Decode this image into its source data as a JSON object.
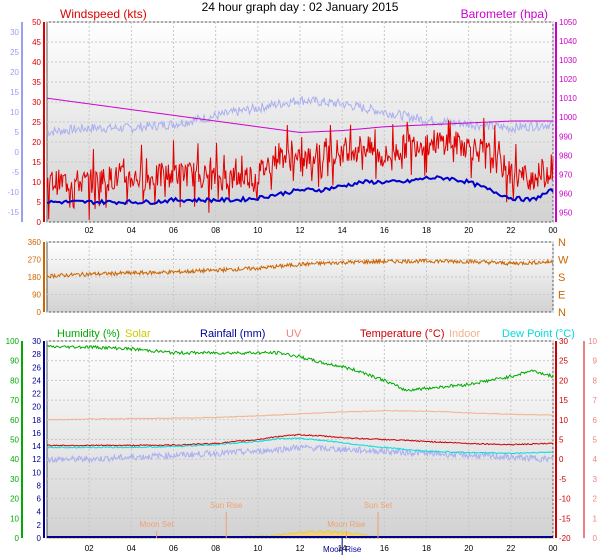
{
  "title": "24 hour graph day : 02 January 2015",
  "colors": {
    "windspeed": "#e00000",
    "avgwind": "#0000cc",
    "barometer": "#cc00cc",
    "temperature": "#cc0000",
    "indoor": "#f5b08a",
    "dewpoint": "#00dddd",
    "humidity": "#00aa00",
    "solar": "#cccc00",
    "rainfall": "#000099",
    "uv": "#f08080",
    "winddir": "#cc6600",
    "extra": "#aab0f0",
    "moon": "#f0a070"
  },
  "chart_data": [
    {
      "type": "line",
      "panel": "wind",
      "labels": {
        "left": "Windspeed (kts)",
        "right": "Barometer (hpa)"
      },
      "x_ticks": [
        "02",
        "04",
        "06",
        "08",
        "10",
        "12",
        "14",
        "16",
        "18",
        "20",
        "22",
        "00"
      ],
      "ylim_left": [
        0,
        50
      ],
      "left_ticks": [
        "0",
        "5",
        "10",
        "15",
        "20",
        "25",
        "30",
        "35",
        "40",
        "45",
        "50"
      ],
      "ylim_right": [
        945,
        1050
      ],
      "right_ticks": [
        "950",
        "960",
        "970",
        "980",
        "990",
        "1000",
        "1010",
        "1020",
        "1030",
        "1040",
        "1050"
      ],
      "far_left_ticks": [
        "-15",
        "-10",
        "-5",
        "0",
        "5",
        "10",
        "15",
        "20",
        "25",
        "30"
      ],
      "series": [
        {
          "key": "windspeed",
          "x": [
            0,
            1,
            2,
            3,
            4,
            5,
            6,
            7,
            8,
            9,
            10,
            11,
            12,
            13,
            14,
            15,
            16,
            17,
            18,
            19,
            20,
            21,
            22,
            23,
            24
          ],
          "values": [
            10,
            10,
            10,
            11,
            11,
            11,
            12,
            12,
            11,
            11,
            12,
            17,
            15,
            17,
            18,
            19,
            16,
            19,
            20,
            20,
            19,
            17,
            12,
            11,
            13
          ]
        },
        {
          "key": "avgwind",
          "x": [
            0,
            1,
            2,
            3,
            4,
            5,
            6,
            7,
            8,
            9,
            10,
            11,
            12,
            13,
            14,
            15,
            16,
            17,
            18,
            19,
            20,
            21,
            22,
            23,
            24
          ],
          "values": [
            5,
            5,
            5,
            5,
            5,
            5,
            5.5,
            5.5,
            5.5,
            5.5,
            6,
            7,
            8,
            8,
            9,
            10,
            10,
            10,
            11,
            11,
            10,
            8,
            6,
            5.5,
            8
          ]
        },
        {
          "key": "barometer",
          "x": [
            0,
            2,
            4,
            6,
            8,
            10,
            12,
            14,
            16,
            18,
            20,
            22,
            24
          ],
          "values": [
            1010,
            1007,
            1004,
            1001,
            998,
            995,
            992,
            993,
            995,
            996,
            997,
            998,
            998
          ]
        },
        {
          "key": "extra",
          "x": [
            0,
            2,
            4,
            6,
            8,
            10,
            12,
            14,
            16,
            18,
            20,
            22,
            24
          ],
          "values": [
            5,
            6,
            6,
            7,
            9,
            11,
            13,
            12,
            10,
            8,
            7,
            6,
            7
          ]
        }
      ]
    },
    {
      "type": "line",
      "panel": "direction",
      "left_ticks": [
        "0",
        "90",
        "180",
        "270",
        "360"
      ],
      "ylim_left": [
        0,
        360
      ],
      "right_ticks": [
        "N",
        "W",
        "S",
        "E",
        "N"
      ],
      "x_ticks": [],
      "series": [
        {
          "key": "winddir",
          "x": [
            0,
            2,
            4,
            6,
            8,
            10,
            12,
            14,
            16,
            18,
            20,
            22,
            24
          ],
          "values": [
            185,
            195,
            200,
            205,
            215,
            225,
            245,
            255,
            260,
            262,
            260,
            250,
            258
          ]
        }
      ]
    },
    {
      "type": "line",
      "panel": "temps",
      "labels": {
        "humidity": "Humidity (%)",
        "solar": "Solar",
        "rainfall": "Rainfall (mm)",
        "uv": "UV",
        "temperature": "Temperature (°C)",
        "indoor": "Indoor",
        "dewpoint": "Dew Point (°C)"
      },
      "x_ticks": [
        "02",
        "04",
        "06",
        "08",
        "10",
        "12",
        "14",
        "16",
        "18",
        "20",
        "22",
        "00"
      ],
      "humidity_ticks": [
        "0",
        "10",
        "20",
        "30",
        "40",
        "50",
        "60",
        "70",
        "80",
        "90",
        "100"
      ],
      "rain_ticks": [
        "0",
        "2",
        "4",
        "6",
        "8",
        "10",
        "12",
        "14",
        "16",
        "18",
        "20",
        "22",
        "24",
        "26",
        "28",
        "30"
      ],
      "temp_ticks": [
        "-20",
        "-15",
        "-10",
        "-5",
        "0",
        "5",
        "10",
        "15",
        "20",
        "25",
        "30"
      ],
      "uv_ticks": [
        "0",
        "1",
        "2",
        "3",
        "4",
        "5",
        "6",
        "7",
        "8",
        "9",
        "10"
      ],
      "ylim_temp": [
        -20,
        30
      ],
      "ylim_humidity": [
        0,
        100
      ],
      "annotations": [
        "Moon Set",
        "Sun Rise",
        "Moon Rise",
        "Sun Set",
        "Moon Rise"
      ],
      "series": [
        {
          "key": "humidity",
          "x": [
            0,
            2,
            4,
            6,
            8,
            9,
            10,
            11,
            12,
            13,
            14,
            15,
            16,
            17,
            18,
            19,
            20,
            21,
            22,
            23,
            24
          ],
          "values": [
            97,
            97,
            96,
            94,
            94,
            94,
            94,
            94,
            92,
            89,
            87,
            84,
            80,
            75,
            76,
            77,
            78,
            80,
            82,
            85,
            82
          ]
        },
        {
          "key": "temperature",
          "x": [
            0,
            2,
            4,
            6,
            8,
            10,
            11,
            12,
            13,
            14,
            15,
            16,
            18,
            20,
            22,
            24
          ],
          "values": [
            3.5,
            3.5,
            3.5,
            3.6,
            4,
            5,
            5.8,
            6.2,
            5.9,
            5.5,
            5.2,
            5,
            4.5,
            4,
            3.7,
            4
          ]
        },
        {
          "key": "indoor",
          "x": [
            0,
            2,
            4,
            6,
            8,
            10,
            12,
            14,
            16,
            18,
            20,
            22,
            24
          ],
          "values": [
            10,
            10.2,
            10.3,
            10.4,
            10.6,
            11,
            11.5,
            12,
            12.3,
            12.2,
            11.8,
            11.4,
            11.2
          ]
        },
        {
          "key": "dewpoint",
          "x": [
            0,
            2,
            4,
            6,
            8,
            10,
            11,
            12,
            13,
            14,
            15,
            16,
            18,
            20,
            22,
            24
          ],
          "values": [
            3,
            3,
            3,
            3.2,
            3.7,
            4.5,
            5.2,
            5.3,
            4.8,
            4.2,
            3.5,
            3,
            2,
            1.7,
            1.5,
            1.8
          ]
        },
        {
          "key": "extra",
          "x": [
            0,
            2,
            4,
            6,
            8,
            10,
            12,
            14,
            16,
            18,
            20,
            22,
            24
          ],
          "values": [
            0,
            0,
            0.5,
            1,
            1.5,
            2,
            3,
            2.5,
            2,
            1.5,
            1,
            0.5,
            0
          ]
        },
        {
          "key": "solar",
          "x": [
            0,
            8,
            9,
            10,
            11,
            12,
            13,
            14,
            15,
            16,
            24
          ],
          "values": [
            0,
            0,
            0,
            0.5,
            1,
            2,
            2.5,
            2,
            1,
            0,
            0
          ]
        },
        {
          "key": "rainfall",
          "x": [
            0,
            24
          ],
          "values": [
            0,
            0
          ]
        }
      ]
    }
  ]
}
